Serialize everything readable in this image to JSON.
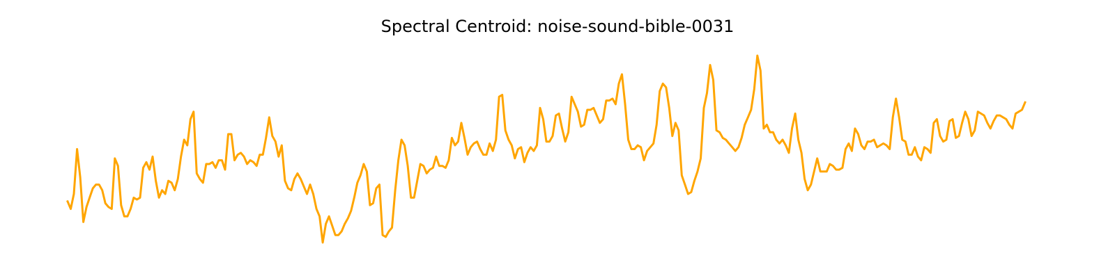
{
  "chart_data": {
    "type": "line",
    "title": "Spectral Centroid: noise-sound-bible-0031",
    "xlabel": "",
    "ylabel": "",
    "axes_visible": false,
    "grid": false,
    "series": [
      {
        "color": "#ffa500",
        "values": [
          0.22,
          0.18,
          0.26,
          0.5,
          0.35,
          0.11,
          0.19,
          0.24,
          0.29,
          0.31,
          0.31,
          0.28,
          0.21,
          0.19,
          0.18,
          0.45,
          0.41,
          0.2,
          0.14,
          0.14,
          0.18,
          0.24,
          0.23,
          0.24,
          0.4,
          0.43,
          0.39,
          0.46,
          0.33,
          0.24,
          0.28,
          0.26,
          0.33,
          0.32,
          0.28,
          0.34,
          0.46,
          0.55,
          0.52,
          0.66,
          0.7,
          0.37,
          0.34,
          0.32,
          0.42,
          0.42,
          0.43,
          0.4,
          0.44,
          0.44,
          0.39,
          0.58,
          0.58,
          0.44,
          0.47,
          0.48,
          0.46,
          0.42,
          0.44,
          0.43,
          0.41,
          0.47,
          0.47,
          0.56,
          0.67,
          0.57,
          0.54,
          0.46,
          0.52,
          0.33,
          0.29,
          0.28,
          0.34,
          0.37,
          0.34,
          0.3,
          0.26,
          0.31,
          0.26,
          0.18,
          0.14,
          0.0,
          0.1,
          0.14,
          0.09,
          0.04,
          0.04,
          0.06,
          0.1,
          0.13,
          0.17,
          0.24,
          0.32,
          0.36,
          0.42,
          0.38,
          0.2,
          0.21,
          0.29,
          0.31,
          0.04,
          0.03,
          0.06,
          0.08,
          0.28,
          0.44,
          0.55,
          0.52,
          0.41,
          0.24,
          0.24,
          0.33,
          0.42,
          0.41,
          0.37,
          0.39,
          0.4,
          0.46,
          0.41,
          0.41,
          0.4,
          0.44,
          0.56,
          0.52,
          0.54,
          0.64,
          0.56,
          0.47,
          0.51,
          0.53,
          0.54,
          0.5,
          0.47,
          0.47,
          0.53,
          0.49,
          0.55,
          0.78,
          0.79,
          0.6,
          0.55,
          0.52,
          0.45,
          0.5,
          0.51,
          0.43,
          0.48,
          0.51,
          0.49,
          0.52,
          0.72,
          0.66,
          0.54,
          0.54,
          0.57,
          0.68,
          0.69,
          0.61,
          0.54,
          0.59,
          0.78,
          0.74,
          0.7,
          0.62,
          0.63,
          0.71,
          0.71,
          0.72,
          0.68,
          0.64,
          0.66,
          0.76,
          0.76,
          0.77,
          0.74,
          0.85,
          0.9,
          0.74,
          0.55,
          0.5,
          0.5,
          0.52,
          0.51,
          0.44,
          0.49,
          0.51,
          0.53,
          0.63,
          0.81,
          0.85,
          0.83,
          0.72,
          0.57,
          0.64,
          0.6,
          0.36,
          0.31,
          0.26,
          0.27,
          0.33,
          0.38,
          0.45,
          0.72,
          0.8,
          0.95,
          0.87,
          0.6,
          0.59,
          0.56,
          0.55,
          0.53,
          0.51,
          0.49,
          0.51,
          0.56,
          0.63,
          0.67,
          0.71,
          0.82,
          1.0,
          0.92,
          0.61,
          0.63,
          0.59,
          0.59,
          0.55,
          0.53,
          0.55,
          0.52,
          0.48,
          0.61,
          0.69,
          0.55,
          0.48,
          0.34,
          0.28,
          0.31,
          0.38,
          0.45,
          0.38,
          0.38,
          0.38,
          0.42,
          0.41,
          0.39,
          0.39,
          0.4,
          0.5,
          0.53,
          0.49,
          0.61,
          0.58,
          0.52,
          0.5,
          0.54,
          0.54,
          0.55,
          0.51,
          0.52,
          0.53,
          0.52,
          0.5,
          0.67,
          0.77,
          0.67,
          0.55,
          0.54,
          0.47,
          0.47,
          0.51,
          0.46,
          0.44,
          0.51,
          0.5,
          0.48,
          0.64,
          0.66,
          0.57,
          0.54,
          0.55,
          0.65,
          0.66,
          0.56,
          0.57,
          0.64,
          0.7,
          0.66,
          0.57,
          0.6,
          0.7,
          0.69,
          0.68,
          0.64,
          0.61,
          0.65,
          0.68,
          0.68,
          0.67,
          0.66,
          0.63,
          0.61,
          0.69,
          0.7,
          0.71,
          0.75
        ]
      }
    ]
  }
}
